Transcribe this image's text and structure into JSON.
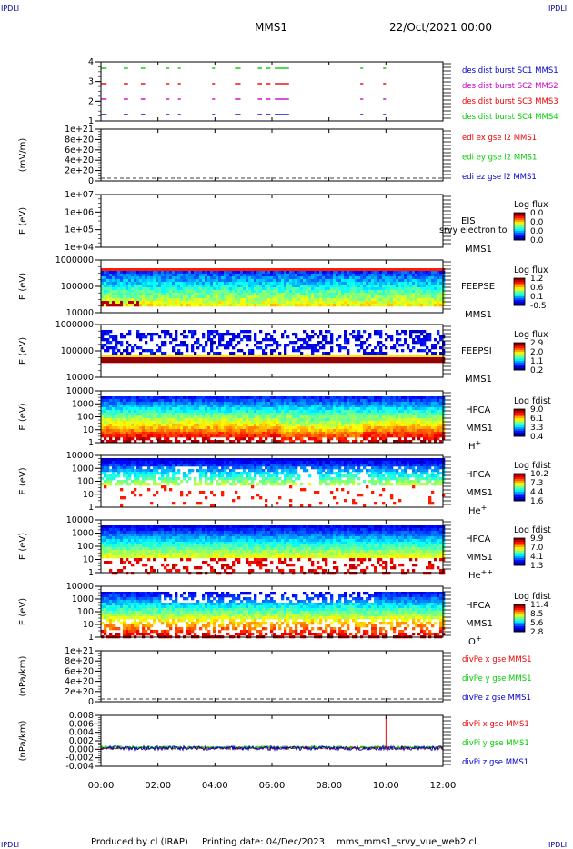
{
  "header": {
    "corner_tl": "IPDLI",
    "corner_tr": "IPDLI",
    "corner_bl": "IPDLI",
    "corner_br": "IPDLI",
    "title": "MMS1",
    "datetime": "22/Oct/2021 00:00"
  },
  "footer": {
    "produced": "Produced by cl (IRAP)",
    "printing": "Printing date: 04/Dec/2023",
    "file": "mms_mms1_srvy_vue_web2.cl"
  },
  "colors": {
    "red": "#ee0000",
    "green": "#00cc00",
    "blue": "#0000cc",
    "magenta": "#cc00cc",
    "black": "#000000"
  },
  "chart_data": [
    {
      "type": "scatter",
      "id": "burst",
      "ylabel": "",
      "yticks": [
        "4",
        "3",
        "2",
        "1"
      ],
      "legend": [
        {
          "text": "des dist burst SC1 MMS1",
          "color": "#0000cc"
        },
        {
          "text": "des dist burst SC2 MMS2",
          "color": "#cc00cc"
        },
        {
          "text": "des dist burst SC3 MMS3",
          "color": "#ee0000"
        },
        {
          "text": "des dist burst SC4 MMS4",
          "color": "#00cc00"
        }
      ],
      "series": [
        {
          "level": 4,
          "color": "#00cc00",
          "intervals_hours": [
            [
              0.0,
              0.2
            ],
            [
              0.8,
              0.95
            ],
            [
              1.4,
              1.55
            ],
            [
              2.3,
              2.4
            ],
            [
              2.7,
              2.8
            ],
            [
              3.9,
              4.0
            ],
            [
              4.7,
              4.9
            ],
            [
              5.5,
              5.65
            ],
            [
              5.8,
              5.95
            ],
            [
              6.1,
              6.6
            ],
            [
              9.1,
              9.2
            ],
            [
              9.9,
              10.0
            ]
          ]
        },
        {
          "level": 3,
          "color": "#ee0000",
          "intervals_hours": [
            [
              0.0,
              0.2
            ],
            [
              0.8,
              0.95
            ],
            [
              1.4,
              1.55
            ],
            [
              2.3,
              2.4
            ],
            [
              2.7,
              2.8
            ],
            [
              3.9,
              4.0
            ],
            [
              4.7,
              4.9
            ],
            [
              5.5,
              5.65
            ],
            [
              5.8,
              5.95
            ],
            [
              6.1,
              6.6
            ],
            [
              9.1,
              9.2
            ],
            [
              9.9,
              10.0
            ]
          ]
        },
        {
          "level": 2,
          "color": "#cc00cc",
          "intervals_hours": [
            [
              0.0,
              0.2
            ],
            [
              0.8,
              0.95
            ],
            [
              1.4,
              1.55
            ],
            [
              2.3,
              2.4
            ],
            [
              2.7,
              2.8
            ],
            [
              3.9,
              4.0
            ],
            [
              4.7,
              4.9
            ],
            [
              5.5,
              5.65
            ],
            [
              5.8,
              5.95
            ],
            [
              6.1,
              6.6
            ],
            [
              9.1,
              9.2
            ],
            [
              9.9,
              10.0
            ]
          ]
        },
        {
          "level": 1,
          "color": "#0000cc",
          "intervals_hours": [
            [
              0.0,
              0.2
            ],
            [
              0.8,
              0.95
            ],
            [
              1.4,
              1.55
            ],
            [
              2.3,
              2.4
            ],
            [
              2.7,
              2.8
            ],
            [
              3.9,
              4.0
            ],
            [
              4.7,
              4.9
            ],
            [
              5.5,
              5.65
            ],
            [
              5.8,
              5.95
            ],
            [
              6.1,
              6.6
            ],
            [
              9.1,
              9.2
            ],
            [
              9.9,
              10.0
            ]
          ]
        }
      ]
    },
    {
      "type": "line",
      "id": "edi",
      "ylabel": "(mV/m)",
      "yticks": [
        "1e+21",
        "8e+20",
        "6e+20",
        "4e+20",
        "2e+20",
        "0"
      ],
      "legend": [
        {
          "text": "edi ex gse l2 MMS1",
          "color": "#ee0000"
        },
        {
          "text": "edi ey gse l2 MMS1",
          "color": "#00cc00"
        },
        {
          "text": "edi ez gse l2 MMS1",
          "color": "#0000cc"
        }
      ],
      "dashed_zero": true
    },
    {
      "type": "heatmap",
      "id": "eis",
      "ylabel": "E (eV)",
      "yticks": [
        "1e+07",
        "1e+06",
        "1e+05",
        "1e+04"
      ],
      "right_labels": [
        "EIS",
        "MMS1"
      ],
      "overlay": "srvy electron to",
      "cbar_title": "Log flux",
      "cbar_ticks": [
        "0.0",
        "0.0",
        "0.0",
        "0.0"
      ],
      "empty": true
    },
    {
      "type": "heatmap",
      "id": "feepse",
      "ylabel": "E (eV)",
      "yticks": [
        "1000000",
        "100000",
        "10000"
      ],
      "right_labels": [
        "FEEPSE",
        "MMS1"
      ],
      "cbar_title": "Log flux",
      "cbar_ticks": [
        "1.2",
        "0.6",
        "0.1",
        "-0.5"
      ],
      "pattern": "feepse"
    },
    {
      "type": "heatmap",
      "id": "feepsi",
      "ylabel": "E (eV)",
      "yticks": [
        "1000000",
        "100000",
        "10000"
      ],
      "right_labels": [
        "FEEPSI",
        "MMS1"
      ],
      "cbar_title": "Log flux",
      "cbar_ticks": [
        "2.9",
        "2.0",
        "1.1",
        "0.2"
      ],
      "pattern": "feepsi"
    },
    {
      "type": "heatmap",
      "id": "hpca_h",
      "ylabel": "E (eV)",
      "yticks": [
        "10000",
        "1000",
        "100",
        "10",
        "1"
      ],
      "right_labels": [
        "HPCA",
        "MMS1",
        "H+"
      ],
      "cbar_title": "Log fdist",
      "cbar_ticks": [
        "9.0",
        "6.1",
        "3.3",
        "0.4"
      ],
      "pattern": "hpca_h"
    },
    {
      "type": "heatmap",
      "id": "hpca_he",
      "ylabel": "E (eV)",
      "yticks": [
        "10000",
        "1000",
        "100",
        "10",
        "1"
      ],
      "right_labels": [
        "HPCA",
        "MMS1",
        "He+"
      ],
      "cbar_title": "Log fdist",
      "cbar_ticks": [
        "10.2",
        "7.3",
        "4.4",
        "1.6"
      ],
      "pattern": "hpca_he"
    },
    {
      "type": "heatmap",
      "id": "hpca_hepp",
      "ylabel": "E (eV)",
      "yticks": [
        "10000",
        "1000",
        "100",
        "10",
        "1"
      ],
      "right_labels": [
        "HPCA",
        "MMS1",
        "He++"
      ],
      "cbar_title": "Log fdist",
      "cbar_ticks": [
        "9.9",
        "7.0",
        "4.1",
        "1.3"
      ],
      "pattern": "hpca_hepp"
    },
    {
      "type": "heatmap",
      "id": "hpca_o",
      "ylabel": "E (eV)",
      "yticks": [
        "10000",
        "1000",
        "100",
        "10",
        "1"
      ],
      "right_labels": [
        "HPCA",
        "MMS1",
        "O+"
      ],
      "cbar_title": "Log fdist",
      "cbar_ticks": [
        "11.4",
        "8.5",
        "5.6",
        "2.8"
      ],
      "pattern": "hpca_o"
    },
    {
      "type": "line",
      "id": "divpe",
      "ylabel": "(nPa/km)",
      "yticks": [
        "1e+21",
        "8e+20",
        "6e+20",
        "4e+20",
        "2e+20",
        "0"
      ],
      "legend": [
        {
          "text": "divPe x gse MMS1",
          "color": "#ee0000"
        },
        {
          "text": "divPe y gse MMS1",
          "color": "#00cc00"
        },
        {
          "text": "divPe z gse MMS1",
          "color": "#0000cc"
        }
      ],
      "dashed_zero": true
    },
    {
      "type": "line",
      "id": "divpi",
      "ylabel": "(nPa/km)",
      "yticks": [
        "0.008",
        "0.006",
        "0.004",
        "0.002",
        "0.000",
        "-0.002",
        "-0.004"
      ],
      "ylim": [
        -0.005,
        0.009
      ],
      "legend": [
        {
          "text": "divPi x gse MMS1",
          "color": "#ee0000"
        },
        {
          "text": "divPi y gse MMS1",
          "color": "#00cc00"
        },
        {
          "text": "divPi z gse MMS1",
          "color": "#0000cc"
        }
      ],
      "spike": {
        "x_hours": 10.0,
        "y": 0.0085
      }
    }
  ],
  "xaxis": {
    "ticks": [
      "00:00",
      "02:00",
      "04:00",
      "06:00",
      "08:00",
      "10:00",
      "12:00"
    ],
    "range_hours": [
      0,
      12
    ]
  }
}
